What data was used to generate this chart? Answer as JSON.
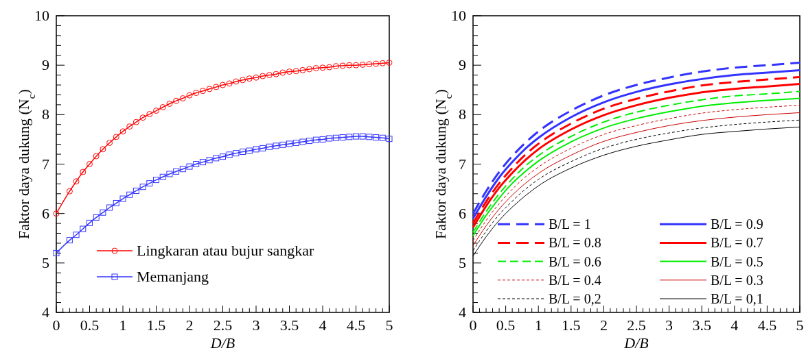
{
  "chart_data": [
    {
      "type": "line",
      "xlabel": "D/B",
      "ylabel": "Faktor daya dukung (N$_{c}$)",
      "xlim": [
        0,
        5
      ],
      "ylim": [
        4,
        10
      ],
      "legend": "bottom",
      "grid": false,
      "xticks": [
        0,
        {
          "value": 0.1,
          "label": null
        },
        {
          "value": 0.2,
          "label": null
        },
        {
          "value": 0.3,
          "label": null
        },
        {
          "value": 0.4,
          "label": null
        },
        0.5,
        {
          "value": 0.6,
          "label": null
        },
        {
          "value": 0.7,
          "label": null
        },
        {
          "value": 0.8,
          "label": null
        },
        {
          "value": 0.9,
          "label": null
        },
        1,
        {
          "value": 1.1,
          "label": null
        },
        {
          "value": 1.2,
          "label": null
        },
        {
          "value": 1.3,
          "label": null
        },
        {
          "value": 1.4,
          "label": null
        },
        1.5,
        {
          "value": 1.6,
          "label": null
        },
        {
          "value": 1.7,
          "label": null
        },
        {
          "value": 1.8,
          "label": null
        },
        {
          "value": 1.9,
          "label": null
        },
        2,
        {
          "value": 2.1,
          "label": null
        },
        {
          "value": 2.2,
          "label": null
        },
        {
          "value": 2.3,
          "label": null
        },
        {
          "value": 2.4,
          "label": null
        },
        2.5,
        {
          "value": 2.6,
          "label": null
        },
        {
          "value": 2.7,
          "label": null
        },
        {
          "value": 2.8,
          "label": null
        },
        {
          "value": 2.9,
          "label": null
        },
        3,
        {
          "value": 3.1,
          "label": null
        },
        {
          "value": 3.2,
          "label": null
        },
        {
          "value": 3.3,
          "label": null
        },
        {
          "value": 3.4,
          "label": null
        },
        3.5,
        {
          "value": 3.6,
          "label": null
        },
        {
          "value": 3.7,
          "label": null
        },
        {
          "value": 3.8,
          "label": null
        },
        {
          "value": 3.9,
          "label": null
        },
        4,
        {
          "value": 4.1,
          "label": null
        },
        {
          "value": 4.2,
          "label": null
        },
        {
          "value": 4.3,
          "label": null
        },
        {
          "value": 4.4,
          "label": null
        },
        4.5,
        {
          "value": 4.6,
          "label": null
        },
        {
          "value": 4.7,
          "label": null
        },
        {
          "value": 4.8,
          "label": null
        },
        {
          "value": 4.9,
          "label": null
        },
        5
      ],
      "yticks": [
        4,
        {
          "value": 4.2,
          "label": null
        },
        {
          "value": 4.4,
          "label": null
        },
        {
          "value": 4.6,
          "label": null
        },
        {
          "value": 4.8,
          "label": null
        },
        5,
        {
          "value": 5.2,
          "label": null
        },
        {
          "value": 5.4,
          "label": null
        },
        {
          "value": 5.6,
          "label": null
        },
        {
          "value": 5.8,
          "label": null
        },
        6,
        {
          "value": 6.2,
          "label": null
        },
        {
          "value": 6.4,
          "label": null
        },
        {
          "value": 6.6,
          "label": null
        },
        {
          "value": 6.8,
          "label": null
        },
        7,
        {
          "value": 7.2,
          "label": null
        },
        {
          "value": 7.4,
          "label": null
        },
        {
          "value": 7.6,
          "label": null
        },
        {
          "value": 7.8,
          "label": null
        },
        8,
        {
          "value": 8.2,
          "label": null
        },
        {
          "value": 8.4,
          "label": null
        },
        {
          "value": 8.6,
          "label": null
        },
        {
          "value": 8.8,
          "label": null
        },
        9,
        {
          "value": 9.2,
          "label": null
        },
        {
          "value": 9.4,
          "label": null
        },
        {
          "value": 9.6,
          "label": null
        },
        {
          "value": 9.8,
          "label": null
        },
        10
      ],
      "x": [
        0,
        0.2,
        0.3,
        0.4,
        0.5,
        0.6,
        0.7,
        0.8,
        0.9,
        1,
        1.1,
        1.2,
        1.3,
        1.4,
        1.5,
        1.6,
        1.7,
        1.8,
        1.9,
        2,
        2.1,
        2.2,
        2.3,
        2.4,
        2.5,
        2.6,
        2.7,
        2.8,
        2.9,
        3,
        3.1,
        3.2,
        3.3,
        3.4,
        3.5,
        3.6,
        3.7,
        3.8,
        3.9,
        4,
        4.1,
        4.2,
        4.3,
        4.4,
        4.5,
        4.6,
        4.7,
        4.8,
        4.9,
        5
      ],
      "series": [
        {
          "name": "Lingkaran atau bujur sangkar",
          "color": "#ff0000",
          "marker": "circle",
          "line_style": "solid",
          "values": [
            6.0,
            6.45,
            6.65,
            6.84,
            7.0,
            7.16,
            7.3,
            7.43,
            7.55,
            7.66,
            7.76,
            7.85,
            7.94,
            8.01,
            8.08,
            8.15,
            8.22,
            8.28,
            8.33,
            8.39,
            8.44,
            8.48,
            8.52,
            8.56,
            8.6,
            8.63,
            8.67,
            8.7,
            8.73,
            8.75,
            8.78,
            8.8,
            8.82,
            8.85,
            8.87,
            8.88,
            8.9,
            8.92,
            8.94,
            8.95,
            8.96,
            8.98,
            8.99,
            9.0,
            9.0,
            9.01,
            9.02,
            9.03,
            9.04,
            9.05
          ]
        },
        {
          "name": "Memanjang",
          "color": "#3333ff",
          "marker": "square",
          "line_style": "solid",
          "values": [
            5.2,
            5.46,
            5.57,
            5.69,
            5.81,
            5.92,
            6.02,
            6.12,
            6.21,
            6.3,
            6.38,
            6.46,
            6.54,
            6.61,
            6.68,
            6.74,
            6.8,
            6.85,
            6.9,
            6.95,
            7.0,
            7.04,
            7.08,
            7.12,
            7.15,
            7.19,
            7.22,
            7.25,
            7.27,
            7.3,
            7.32,
            7.35,
            7.37,
            7.39,
            7.41,
            7.43,
            7.45,
            7.47,
            7.49,
            7.5,
            7.52,
            7.53,
            7.54,
            7.55,
            7.56,
            7.56,
            7.55,
            7.54,
            7.53,
            7.51
          ]
        }
      ]
    },
    {
      "type": "line",
      "xlabel": "D/B",
      "ylabel": "Faktor daya dukung (N$_{c}$)",
      "xlim": [
        0,
        5
      ],
      "ylim": [
        4,
        10
      ],
      "legend": "bottom",
      "grid": false,
      "marker": "none",
      "xticks": [
        0,
        {
          "value": 0.1,
          "label": null
        },
        {
          "value": 0.2,
          "label": null
        },
        {
          "value": 0.3,
          "label": null
        },
        {
          "value": 0.4,
          "label": null
        },
        0.5,
        {
          "value": 0.6,
          "label": null
        },
        {
          "value": 0.7,
          "label": null
        },
        {
          "value": 0.8,
          "label": null
        },
        {
          "value": 0.9,
          "label": null
        },
        1,
        {
          "value": 1.1,
          "label": null
        },
        {
          "value": 1.2,
          "label": null
        },
        {
          "value": 1.3,
          "label": null
        },
        {
          "value": 1.4,
          "label": null
        },
        1.5,
        {
          "value": 1.6,
          "label": null
        },
        {
          "value": 1.7,
          "label": null
        },
        {
          "value": 1.8,
          "label": null
        },
        {
          "value": 1.9,
          "label": null
        },
        2,
        {
          "value": 2.1,
          "label": null
        },
        {
          "value": 2.2,
          "label": null
        },
        {
          "value": 2.3,
          "label": null
        },
        {
          "value": 2.4,
          "label": null
        },
        2.5,
        {
          "value": 2.6,
          "label": null
        },
        {
          "value": 2.7,
          "label": null
        },
        {
          "value": 2.8,
          "label": null
        },
        {
          "value": 2.9,
          "label": null
        },
        3,
        {
          "value": 3.1,
          "label": null
        },
        {
          "value": 3.2,
          "label": null
        },
        {
          "value": 3.3,
          "label": null
        },
        {
          "value": 3.4,
          "label": null
        },
        3.5,
        {
          "value": 3.6,
          "label": null
        },
        {
          "value": 3.7,
          "label": null
        },
        {
          "value": 3.8,
          "label": null
        },
        {
          "value": 3.9,
          "label": null
        },
        4,
        {
          "value": 4.1,
          "label": null
        },
        {
          "value": 4.2,
          "label": null
        },
        {
          "value": 4.3,
          "label": null
        },
        {
          "value": 4.4,
          "label": null
        },
        4.5,
        {
          "value": 4.6,
          "label": null
        },
        {
          "value": 4.7,
          "label": null
        },
        {
          "value": 4.8,
          "label": null
        },
        {
          "value": 4.9,
          "label": null
        },
        5
      ],
      "yticks": [
        4,
        {
          "value": 4.2,
          "label": null
        },
        {
          "value": 4.4,
          "label": null
        },
        {
          "value": 4.6,
          "label": null
        },
        {
          "value": 4.8,
          "label": null
        },
        5,
        {
          "value": 5.2,
          "label": null
        },
        {
          "value": 5.4,
          "label": null
        },
        {
          "value": 5.6,
          "label": null
        },
        {
          "value": 5.8,
          "label": null
        },
        6,
        {
          "value": 6.2,
          "label": null
        },
        {
          "value": 6.4,
          "label": null
        },
        {
          "value": 6.6,
          "label": null
        },
        {
          "value": 6.8,
          "label": null
        },
        7,
        {
          "value": 7.2,
          "label": null
        },
        {
          "value": 7.4,
          "label": null
        },
        {
          "value": 7.6,
          "label": null
        },
        {
          "value": 7.8,
          "label": null
        },
        8,
        {
          "value": 8.2,
          "label": null
        },
        {
          "value": 8.4,
          "label": null
        },
        {
          "value": 8.6,
          "label": null
        },
        {
          "value": 8.8,
          "label": null
        },
        9,
        {
          "value": 9.2,
          "label": null
        },
        {
          "value": 9.4,
          "label": null
        },
        {
          "value": 9.6,
          "label": null
        },
        {
          "value": 9.8,
          "label": null
        },
        10
      ],
      "x": [
        0,
        0.2,
        0.4,
        0.6,
        0.8,
        1,
        1.5,
        2,
        2.5,
        3,
        3.5,
        4,
        4.5,
        5
      ],
      "series": [
        {
          "name": "B/L = 1",
          "color": "#3333ff",
          "line_style": "dashed",
          "values": [
            6.0,
            6.45,
            6.84,
            7.16,
            7.43,
            7.66,
            8.08,
            8.39,
            8.6,
            8.75,
            8.87,
            8.95,
            9.0,
            9.05
          ]
        },
        {
          "name": "B/L = 0.9",
          "color": "#3333ff",
          "line_style": "solid",
          "values": [
            5.9,
            6.34,
            6.73,
            7.04,
            7.31,
            7.53,
            7.95,
            8.25,
            8.46,
            8.61,
            8.72,
            8.8,
            8.85,
            8.9
          ]
        },
        {
          "name": "B/L = 0.8",
          "color": "#ff0000",
          "line_style": "dashed",
          "values": [
            5.8,
            6.24,
            6.61,
            6.92,
            7.19,
            7.41,
            7.82,
            8.12,
            8.32,
            8.47,
            8.59,
            8.66,
            8.71,
            8.76
          ]
        },
        {
          "name": "B/L = 0.7",
          "color": "#ff0000",
          "line_style": "solid",
          "values": [
            5.72,
            6.15,
            6.52,
            6.82,
            7.08,
            7.3,
            7.7,
            7.99,
            8.19,
            8.34,
            8.45,
            8.52,
            8.57,
            8.62
          ]
        },
        {
          "name": "B/L = 0.6",
          "color": "#00ee00",
          "line_style": "dashed",
          "values": [
            5.62,
            6.04,
            6.4,
            6.7,
            6.96,
            7.17,
            7.56,
            7.85,
            8.05,
            8.19,
            8.3,
            8.38,
            8.42,
            8.47
          ]
        },
        {
          "name": "B/L = 0.5",
          "color": "#00ee00",
          "line_style": "solid",
          "values": [
            5.55,
            5.96,
            6.31,
            6.61,
            6.85,
            7.06,
            7.45,
            7.73,
            7.92,
            8.06,
            8.17,
            8.24,
            8.29,
            8.33
          ]
        },
        {
          "name": "B/L = 0.4",
          "color": "#cc0000",
          "line_style": "dotted",
          "values": [
            5.45,
            5.86,
            6.2,
            6.49,
            6.74,
            6.94,
            7.32,
            7.6,
            7.78,
            7.92,
            8.03,
            8.1,
            8.15,
            8.19
          ]
        },
        {
          "name": "B/L = 0.3",
          "color": "#cc0000",
          "line_style": "solid",
          "values": [
            5.35,
            5.75,
            6.09,
            6.37,
            6.61,
            6.81,
            7.18,
            7.46,
            7.64,
            7.78,
            7.88,
            7.95,
            8.0,
            8.04
          ]
        },
        {
          "name": "B/L = 0,2",
          "color": "#000000",
          "line_style": "dotted",
          "values": [
            5.25,
            5.64,
            5.98,
            6.25,
            6.49,
            6.69,
            7.05,
            7.32,
            7.5,
            7.63,
            7.73,
            7.8,
            7.85,
            7.89
          ]
        },
        {
          "name": "B/L = 0,1",
          "color": "#000000",
          "line_style": "solid",
          "values": [
            5.14,
            5.53,
            5.86,
            6.13,
            6.36,
            6.56,
            6.92,
            7.18,
            7.36,
            7.49,
            7.6,
            7.66,
            7.71,
            7.75
          ]
        }
      ]
    }
  ]
}
